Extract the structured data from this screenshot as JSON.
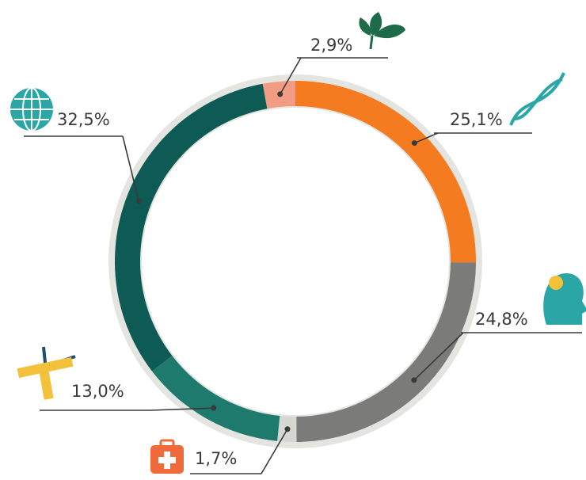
{
  "chart_data": {
    "type": "donut",
    "values": [
      25.1,
      24.8,
      1.7,
      13.0,
      32.5,
      2.9
    ],
    "value_labels": [
      "25,1%",
      "24,8%",
      "1,7%",
      "13,0%",
      "32,5%",
      "2,9%"
    ],
    "colors": [
      "#f47b20",
      "#7b7b79",
      "#d6d6d2",
      "#1f7a6e",
      "#0d5b54",
      "#f39c84"
    ]
  }
}
